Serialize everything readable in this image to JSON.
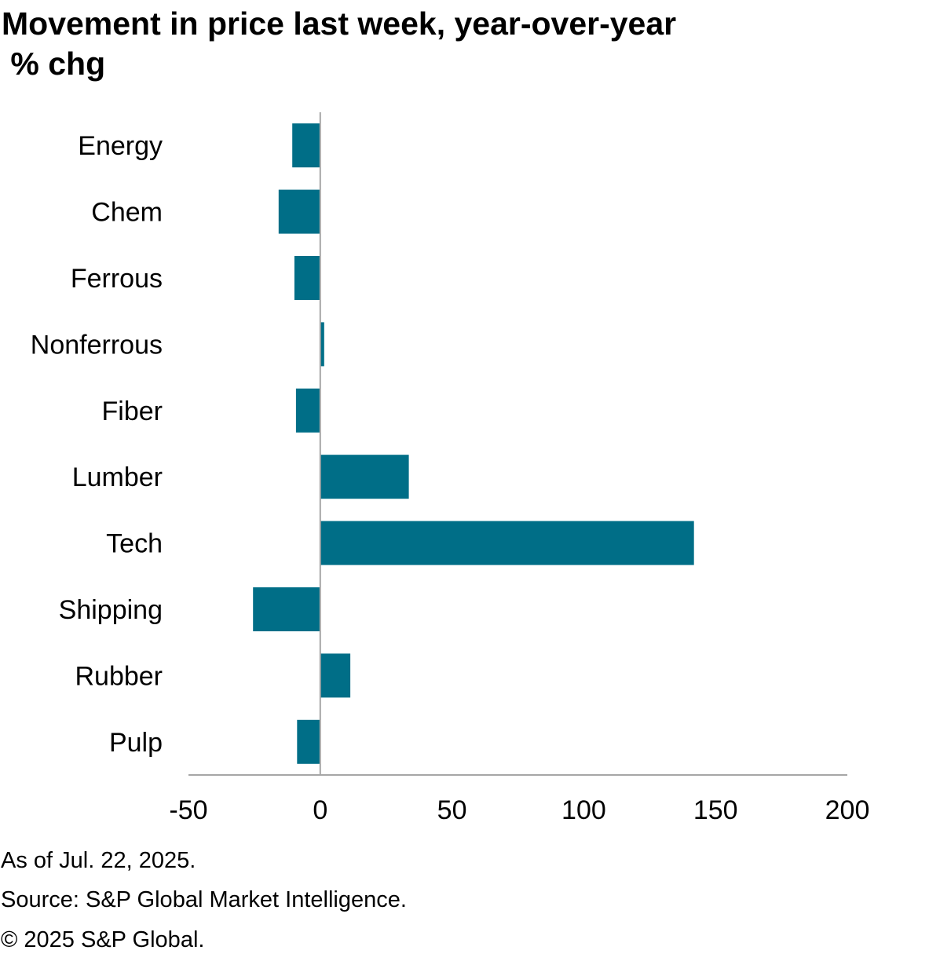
{
  "chart_data": {
    "type": "bar",
    "orientation": "horizontal",
    "title": "Movement in price last week, year-over-year",
    "subtitle": " % chg",
    "categories": [
      "Energy",
      "Chem",
      "Ferrous",
      "Nonferrous",
      "Fiber",
      "Lumber",
      "Tech",
      "Shipping",
      "Rubber",
      "Pulp"
    ],
    "series": [
      {
        "name": "% chg",
        "values": [
          -10.6,
          -15.8,
          -9.8,
          1.5,
          -9.2,
          33.6,
          141.8,
          -25.5,
          11.4,
          -8.8
        ],
        "color": "#006E87"
      }
    ],
    "xlim": [
      -50,
      200
    ],
    "xticks": [
      -50,
      0,
      50,
      100,
      150,
      200
    ],
    "xtick_labels": [
      "-50",
      "0",
      "50",
      "100",
      "150",
      "200"
    ],
    "xlabel": "",
    "ylabel": "",
    "grid": false,
    "legend": "none"
  },
  "footnotes": {
    "as_of": "As of Jul. 22, 2025.",
    "source": "Source: S&P Global Market Intelligence.",
    "copyright": "© 2025 S&P Global."
  },
  "colors": {
    "bar": "#006E87",
    "axis": "#A6A6A6",
    "text": "#000000"
  }
}
